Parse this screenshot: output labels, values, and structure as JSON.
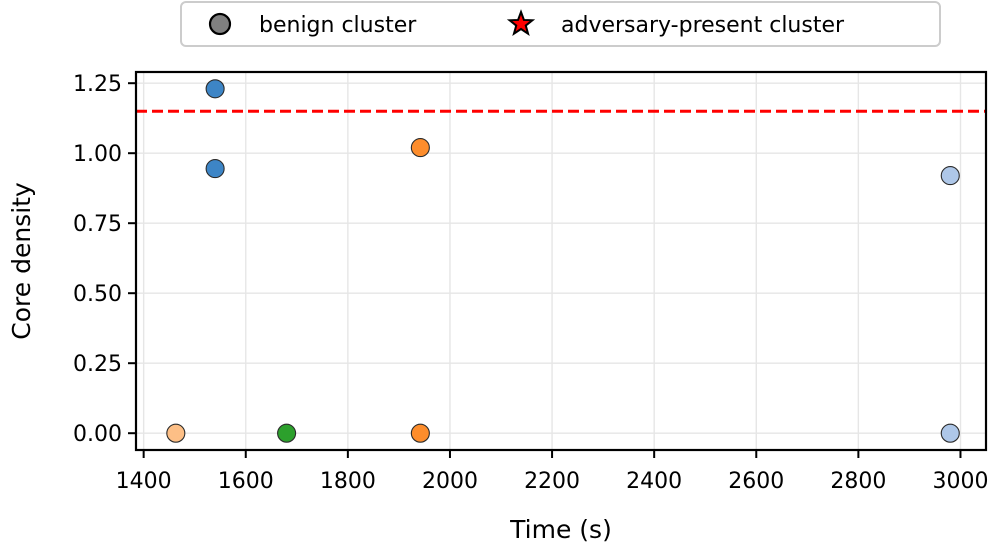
{
  "chart_data": {
    "type": "scatter",
    "title": "",
    "xlabel": "Time (s)",
    "ylabel": "Core density",
    "xlim": [
      1385,
      3050
    ],
    "ylim": [
      -0.06,
      1.29
    ],
    "x_ticks": [
      1400,
      1600,
      1800,
      2000,
      2200,
      2400,
      2600,
      2800,
      3000
    ],
    "x_tick_labels": [
      "1400",
      "1600",
      "1800",
      "2000",
      "2200",
      "2400",
      "2600",
      "2800",
      "3000"
    ],
    "y_ticks": [
      0.0,
      0.25,
      0.5,
      0.75,
      1.0,
      1.25
    ],
    "y_tick_labels": [
      "0.00",
      "0.25",
      "0.50",
      "0.75",
      "1.00",
      "1.25"
    ],
    "grid": true,
    "threshold": {
      "y": 1.15,
      "color": "#ff0000",
      "style": "dashed"
    },
    "legend": {
      "placement": "top-center-outside",
      "entries": [
        {
          "label": "benign cluster",
          "marker": "circle",
          "color": "#808080"
        },
        {
          "label": "adversary-present cluster",
          "marker": "star",
          "color": "#ff0000"
        }
      ]
    },
    "points": [
      {
        "x": 1463,
        "y": 0.0,
        "color": "#fdbf86"
      },
      {
        "x": 1540,
        "y": 1.23,
        "color": "#3d85c6"
      },
      {
        "x": 1540,
        "y": 0.945,
        "color": "#3d85c6"
      },
      {
        "x": 1680,
        "y": 0.0,
        "color": "#2ca02c"
      },
      {
        "x": 1942,
        "y": 1.02,
        "color": "#fd8d2c"
      },
      {
        "x": 1942,
        "y": 0.0,
        "color": "#fd8d2c"
      },
      {
        "x": 2980,
        "y": 0.92,
        "color": "#aec7e8"
      },
      {
        "x": 2980,
        "y": 0.0,
        "color": "#aec7e8"
      }
    ]
  }
}
